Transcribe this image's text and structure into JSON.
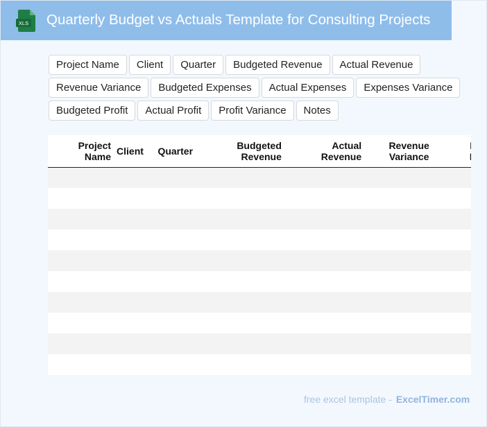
{
  "header": {
    "icon_text": "XLS",
    "title": "Quarterly Budget vs Actuals Template for Consulting Projects"
  },
  "chips": [
    "Project Name",
    "Client",
    "Quarter",
    "Budgeted Revenue",
    "Actual Revenue",
    "Revenue Variance",
    "Budgeted Expenses",
    "Actual Expenses",
    "Expenses Variance",
    "Budgeted Profit",
    "Actual Profit",
    "Profit Variance",
    "Notes"
  ],
  "table": {
    "columns": [
      [
        "Project",
        "Name"
      ],
      [
        "Client"
      ],
      [
        "Quarter"
      ],
      [
        "Budgeted",
        "Revenue"
      ],
      [
        "Actual",
        "Revenue"
      ],
      [
        "Revenue",
        "Variance"
      ],
      [
        "Budgeted",
        "Expenses"
      ]
    ],
    "row_count": 10
  },
  "footer": {
    "text": "free excel template -",
    "brand": "ExcelTimer.com"
  },
  "colors": {
    "header_bg": "#8fbdea",
    "icon_green": "#1e7e45",
    "stripe": "#f3f3f3",
    "footer_text": "#a9c3e0"
  }
}
